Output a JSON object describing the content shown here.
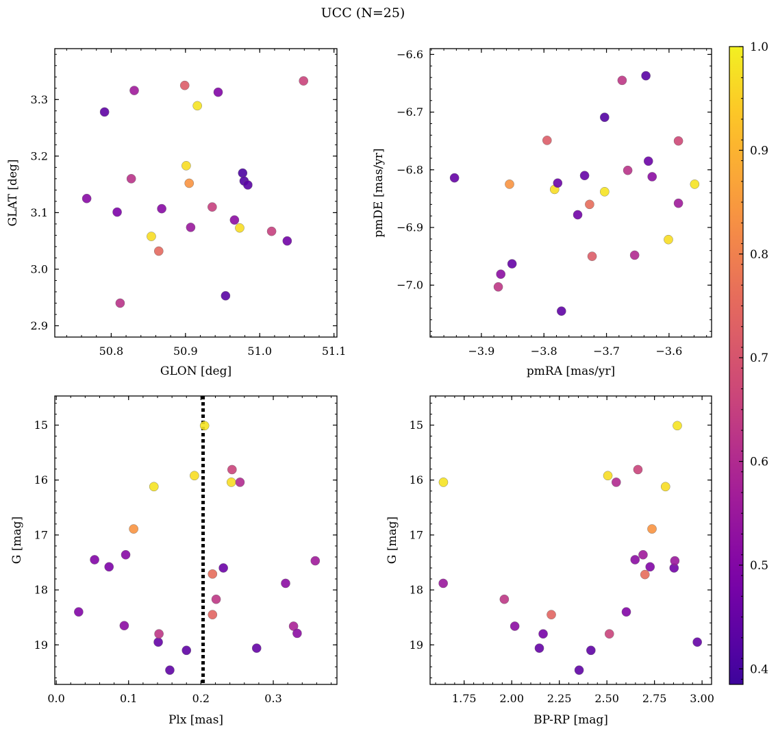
{
  "title": "UCC (N=25)",
  "colorbar": {
    "min": 0.4,
    "max": 1.0,
    "range": [
      0.385,
      1.0
    ],
    "ticks": [
      0.4,
      0.5,
      0.6,
      0.7,
      0.8,
      0.9,
      1.0
    ],
    "tick_labels": [
      "0.4",
      "0.5",
      "0.6",
      "0.7",
      "0.8",
      "0.9",
      "1.0"
    ],
    "colormap": "plasma (dark-blue → purple → pink → orange → yellow)"
  },
  "chart_data": [
    {
      "type": "scatter",
      "name": "sky",
      "xlabel": "GLON [deg]",
      "ylabel": "GLAT [deg]",
      "xlim": [
        50.724,
        51.104
      ],
      "ylim": [
        2.88,
        3.39
      ],
      "y_inverted": false,
      "xticks": [
        50.8,
        50.9,
        51.0,
        51.1
      ],
      "xtick_labels": [
        "50.8",
        "50.9",
        "51.0",
        "51.1"
      ],
      "yticks": [
        2.9,
        3.0,
        3.1,
        3.2,
        3.3
      ],
      "ytick_labels": [
        "2.9",
        "3.0",
        "3.1",
        "3.2",
        "3.3"
      ],
      "points": [
        {
          "x": 50.767,
          "y": 3.125,
          "c": 0.51
        },
        {
          "x": 50.791,
          "y": 3.278,
          "c": 0.44
        },
        {
          "x": 50.808,
          "y": 3.101,
          "c": 0.49
        },
        {
          "x": 50.812,
          "y": 2.94,
          "c": 0.62
        },
        {
          "x": 50.827,
          "y": 3.16,
          "c": 0.62
        },
        {
          "x": 50.831,
          "y": 3.316,
          "c": 0.56
        },
        {
          "x": 50.854,
          "y": 3.058,
          "c": 0.97
        },
        {
          "x": 50.864,
          "y": 3.032,
          "c": 0.75
        },
        {
          "x": 50.868,
          "y": 3.107,
          "c": 0.51
        },
        {
          "x": 50.899,
          "y": 3.325,
          "c": 0.72
        },
        {
          "x": 50.901,
          "y": 3.183,
          "c": 0.97
        },
        {
          "x": 50.905,
          "y": 3.152,
          "c": 0.84
        },
        {
          "x": 50.907,
          "y": 3.074,
          "c": 0.55
        },
        {
          "x": 50.916,
          "y": 3.289,
          "c": 0.98
        },
        {
          "x": 50.936,
          "y": 3.11,
          "c": 0.65
        },
        {
          "x": 50.944,
          "y": 3.313,
          "c": 0.5
        },
        {
          "x": 50.954,
          "y": 2.953,
          "c": 0.43
        },
        {
          "x": 50.966,
          "y": 3.087,
          "c": 0.52
        },
        {
          "x": 50.973,
          "y": 3.073,
          "c": 0.97
        },
        {
          "x": 50.977,
          "y": 3.17,
          "c": 0.41
        },
        {
          "x": 50.979,
          "y": 3.156,
          "c": 0.42
        },
        {
          "x": 50.984,
          "y": 3.149,
          "c": 0.43
        },
        {
          "x": 51.016,
          "y": 3.067,
          "c": 0.65
        },
        {
          "x": 51.037,
          "y": 3.05,
          "c": 0.47
        },
        {
          "x": 51.059,
          "y": 3.333,
          "c": 0.66
        }
      ]
    },
    {
      "type": "scatter",
      "name": "proper-motion",
      "xlabel": "pmRA [mas/yr]",
      "ylabel": "pmDE [mas/yr]",
      "xlim": [
        -3.982,
        -3.532
      ],
      "ylim": [
        -7.09,
        -6.59
      ],
      "y_inverted": false,
      "xticks": [
        -3.9,
        -3.8,
        -3.7,
        -3.6
      ],
      "xtick_labels": [
        "−3.9",
        "−3.8",
        "−3.7",
        "−3.6"
      ],
      "yticks": [
        -7.0,
        -6.9,
        -6.8,
        -6.7,
        -6.6
      ],
      "ytick_labels": [
        "−7.0",
        "−6.9",
        "−6.8",
        "−6.7",
        "−6.6"
      ],
      "points": [
        {
          "x": -3.943,
          "y": -6.814,
          "c": 0.45
        },
        {
          "x": -3.873,
          "y": -7.003,
          "c": 0.63
        },
        {
          "x": -3.869,
          "y": -6.981,
          "c": 0.52
        },
        {
          "x": -3.851,
          "y": -6.963,
          "c": 0.45
        },
        {
          "x": -3.855,
          "y": -6.825,
          "c": 0.84
        },
        {
          "x": -3.795,
          "y": -6.749,
          "c": 0.72
        },
        {
          "x": -3.783,
          "y": -6.834,
          "c": 0.97
        },
        {
          "x": -3.778,
          "y": -6.823,
          "c": 0.46
        },
        {
          "x": -3.772,
          "y": -7.045,
          "c": 0.44
        },
        {
          "x": -3.746,
          "y": -6.878,
          "c": 0.47
        },
        {
          "x": -3.735,
          "y": -6.81,
          "c": 0.45
        },
        {
          "x": -3.727,
          "y": -6.86,
          "c": 0.76
        },
        {
          "x": -3.723,
          "y": -6.95,
          "c": 0.72
        },
        {
          "x": -3.703,
          "y": -6.838,
          "c": 0.98
        },
        {
          "x": -3.703,
          "y": -6.709,
          "c": 0.42
        },
        {
          "x": -3.675,
          "y": -6.645,
          "c": 0.63
        },
        {
          "x": -3.666,
          "y": -6.801,
          "c": 0.62
        },
        {
          "x": -3.655,
          "y": -6.948,
          "c": 0.6
        },
        {
          "x": -3.637,
          "y": -6.637,
          "c": 0.43
        },
        {
          "x": -3.633,
          "y": -6.785,
          "c": 0.46
        },
        {
          "x": -3.627,
          "y": -6.812,
          "c": 0.52
        },
        {
          "x": -3.601,
          "y": -6.921,
          "c": 0.97
        },
        {
          "x": -3.585,
          "y": -6.75,
          "c": 0.67
        },
        {
          "x": -3.585,
          "y": -6.858,
          "c": 0.56
        },
        {
          "x": -3.559,
          "y": -6.825,
          "c": 0.98
        }
      ]
    },
    {
      "type": "scatter",
      "name": "plx-g",
      "xlabel": "Plx [mas]",
      "ylabel": "G [mag]",
      "xlim": [
        -0.002,
        0.388
      ],
      "ylim": [
        19.72,
        14.47
      ],
      "y_inverted": true,
      "vline": {
        "x": 0.203,
        "style": "dotted"
      },
      "xticks": [
        0.0,
        0.1,
        0.2,
        0.3
      ],
      "xtick_labels": [
        "0.0",
        "0.1",
        "0.2",
        "0.3"
      ],
      "yticks": [
        15,
        16,
        17,
        18,
        19
      ],
      "ytick_labels": [
        "15",
        "16",
        "17",
        "18",
        "19"
      ],
      "points": [
        {
          "x": 0.031,
          "y": 18.4,
          "c": 0.5
        },
        {
          "x": 0.053,
          "y": 17.45,
          "c": 0.5
        },
        {
          "x": 0.073,
          "y": 17.58,
          "c": 0.49
        },
        {
          "x": 0.094,
          "y": 18.65,
          "c": 0.52
        },
        {
          "x": 0.096,
          "y": 17.36,
          "c": 0.51
        },
        {
          "x": 0.107,
          "y": 16.89,
          "c": 0.84
        },
        {
          "x": 0.135,
          "y": 16.12,
          "c": 0.98
        },
        {
          "x": 0.141,
          "y": 18.95,
          "c": 0.45
        },
        {
          "x": 0.142,
          "y": 18.8,
          "c": 0.63
        },
        {
          "x": 0.157,
          "y": 19.46,
          "c": 0.44
        },
        {
          "x": 0.18,
          "y": 19.1,
          "c": 0.44
        },
        {
          "x": 0.191,
          "y": 15.92,
          "c": 0.97
        },
        {
          "x": 0.205,
          "y": 15.01,
          "c": 0.98
        },
        {
          "x": 0.216,
          "y": 17.71,
          "c": 0.76
        },
        {
          "x": 0.216,
          "y": 18.45,
          "c": 0.74
        },
        {
          "x": 0.221,
          "y": 18.17,
          "c": 0.63
        },
        {
          "x": 0.231,
          "y": 17.6,
          "c": 0.46
        },
        {
          "x": 0.242,
          "y": 16.04,
          "c": 0.97
        },
        {
          "x": 0.243,
          "y": 15.81,
          "c": 0.66
        },
        {
          "x": 0.254,
          "y": 16.04,
          "c": 0.6
        },
        {
          "x": 0.277,
          "y": 19.06,
          "c": 0.45
        },
        {
          "x": 0.317,
          "y": 17.88,
          "c": 0.52
        },
        {
          "x": 0.328,
          "y": 18.66,
          "c": 0.58
        },
        {
          "x": 0.333,
          "y": 18.79,
          "c": 0.52
        },
        {
          "x": 0.358,
          "y": 17.47,
          "c": 0.56
        }
      ]
    },
    {
      "type": "scatter",
      "name": "cmd",
      "xlabel": "BP-RP [mag]",
      "ylabel": "G [mag]",
      "xlim": [
        1.571,
        3.05
      ],
      "ylim": [
        19.72,
        14.47
      ],
      "y_inverted": true,
      "xticks": [
        1.75,
        2.0,
        2.25,
        2.5,
        2.75,
        3.0
      ],
      "xtick_labels": [
        "1.75",
        "2.00",
        "2.25",
        "2.50",
        "2.75",
        "3.00"
      ],
      "yticks": [
        15,
        16,
        17,
        18,
        19
      ],
      "ytick_labels": [
        "15",
        "16",
        "17",
        "18",
        "19"
      ],
      "points": [
        {
          "x": 1.641,
          "y": 16.04,
          "c": 0.98
        },
        {
          "x": 1.64,
          "y": 17.88,
          "c": 0.55
        },
        {
          "x": 1.961,
          "y": 18.17,
          "c": 0.63
        },
        {
          "x": 2.016,
          "y": 18.66,
          "c": 0.52
        },
        {
          "x": 2.145,
          "y": 19.06,
          "c": 0.45
        },
        {
          "x": 2.165,
          "y": 18.8,
          "c": 0.48
        },
        {
          "x": 2.208,
          "y": 18.45,
          "c": 0.74
        },
        {
          "x": 2.354,
          "y": 19.46,
          "c": 0.44
        },
        {
          "x": 2.416,
          "y": 19.1,
          "c": 0.44
        },
        {
          "x": 2.505,
          "y": 15.92,
          "c": 0.97
        },
        {
          "x": 2.513,
          "y": 18.8,
          "c": 0.66
        },
        {
          "x": 2.549,
          "y": 16.04,
          "c": 0.6
        },
        {
          "x": 2.602,
          "y": 18.4,
          "c": 0.5
        },
        {
          "x": 2.648,
          "y": 17.45,
          "c": 0.52
        },
        {
          "x": 2.663,
          "y": 15.81,
          "c": 0.66
        },
        {
          "x": 2.69,
          "y": 17.36,
          "c": 0.56
        },
        {
          "x": 2.7,
          "y": 17.72,
          "c": 0.76
        },
        {
          "x": 2.727,
          "y": 17.58,
          "c": 0.5
        },
        {
          "x": 2.737,
          "y": 16.89,
          "c": 0.84
        },
        {
          "x": 2.808,
          "y": 16.12,
          "c": 0.97
        },
        {
          "x": 2.853,
          "y": 17.6,
          "c": 0.47
        },
        {
          "x": 2.857,
          "y": 17.47,
          "c": 0.55
        },
        {
          "x": 2.87,
          "y": 15.01,
          "c": 0.98
        },
        {
          "x": 2.975,
          "y": 18.95,
          "c": 0.45
        }
      ]
    }
  ]
}
